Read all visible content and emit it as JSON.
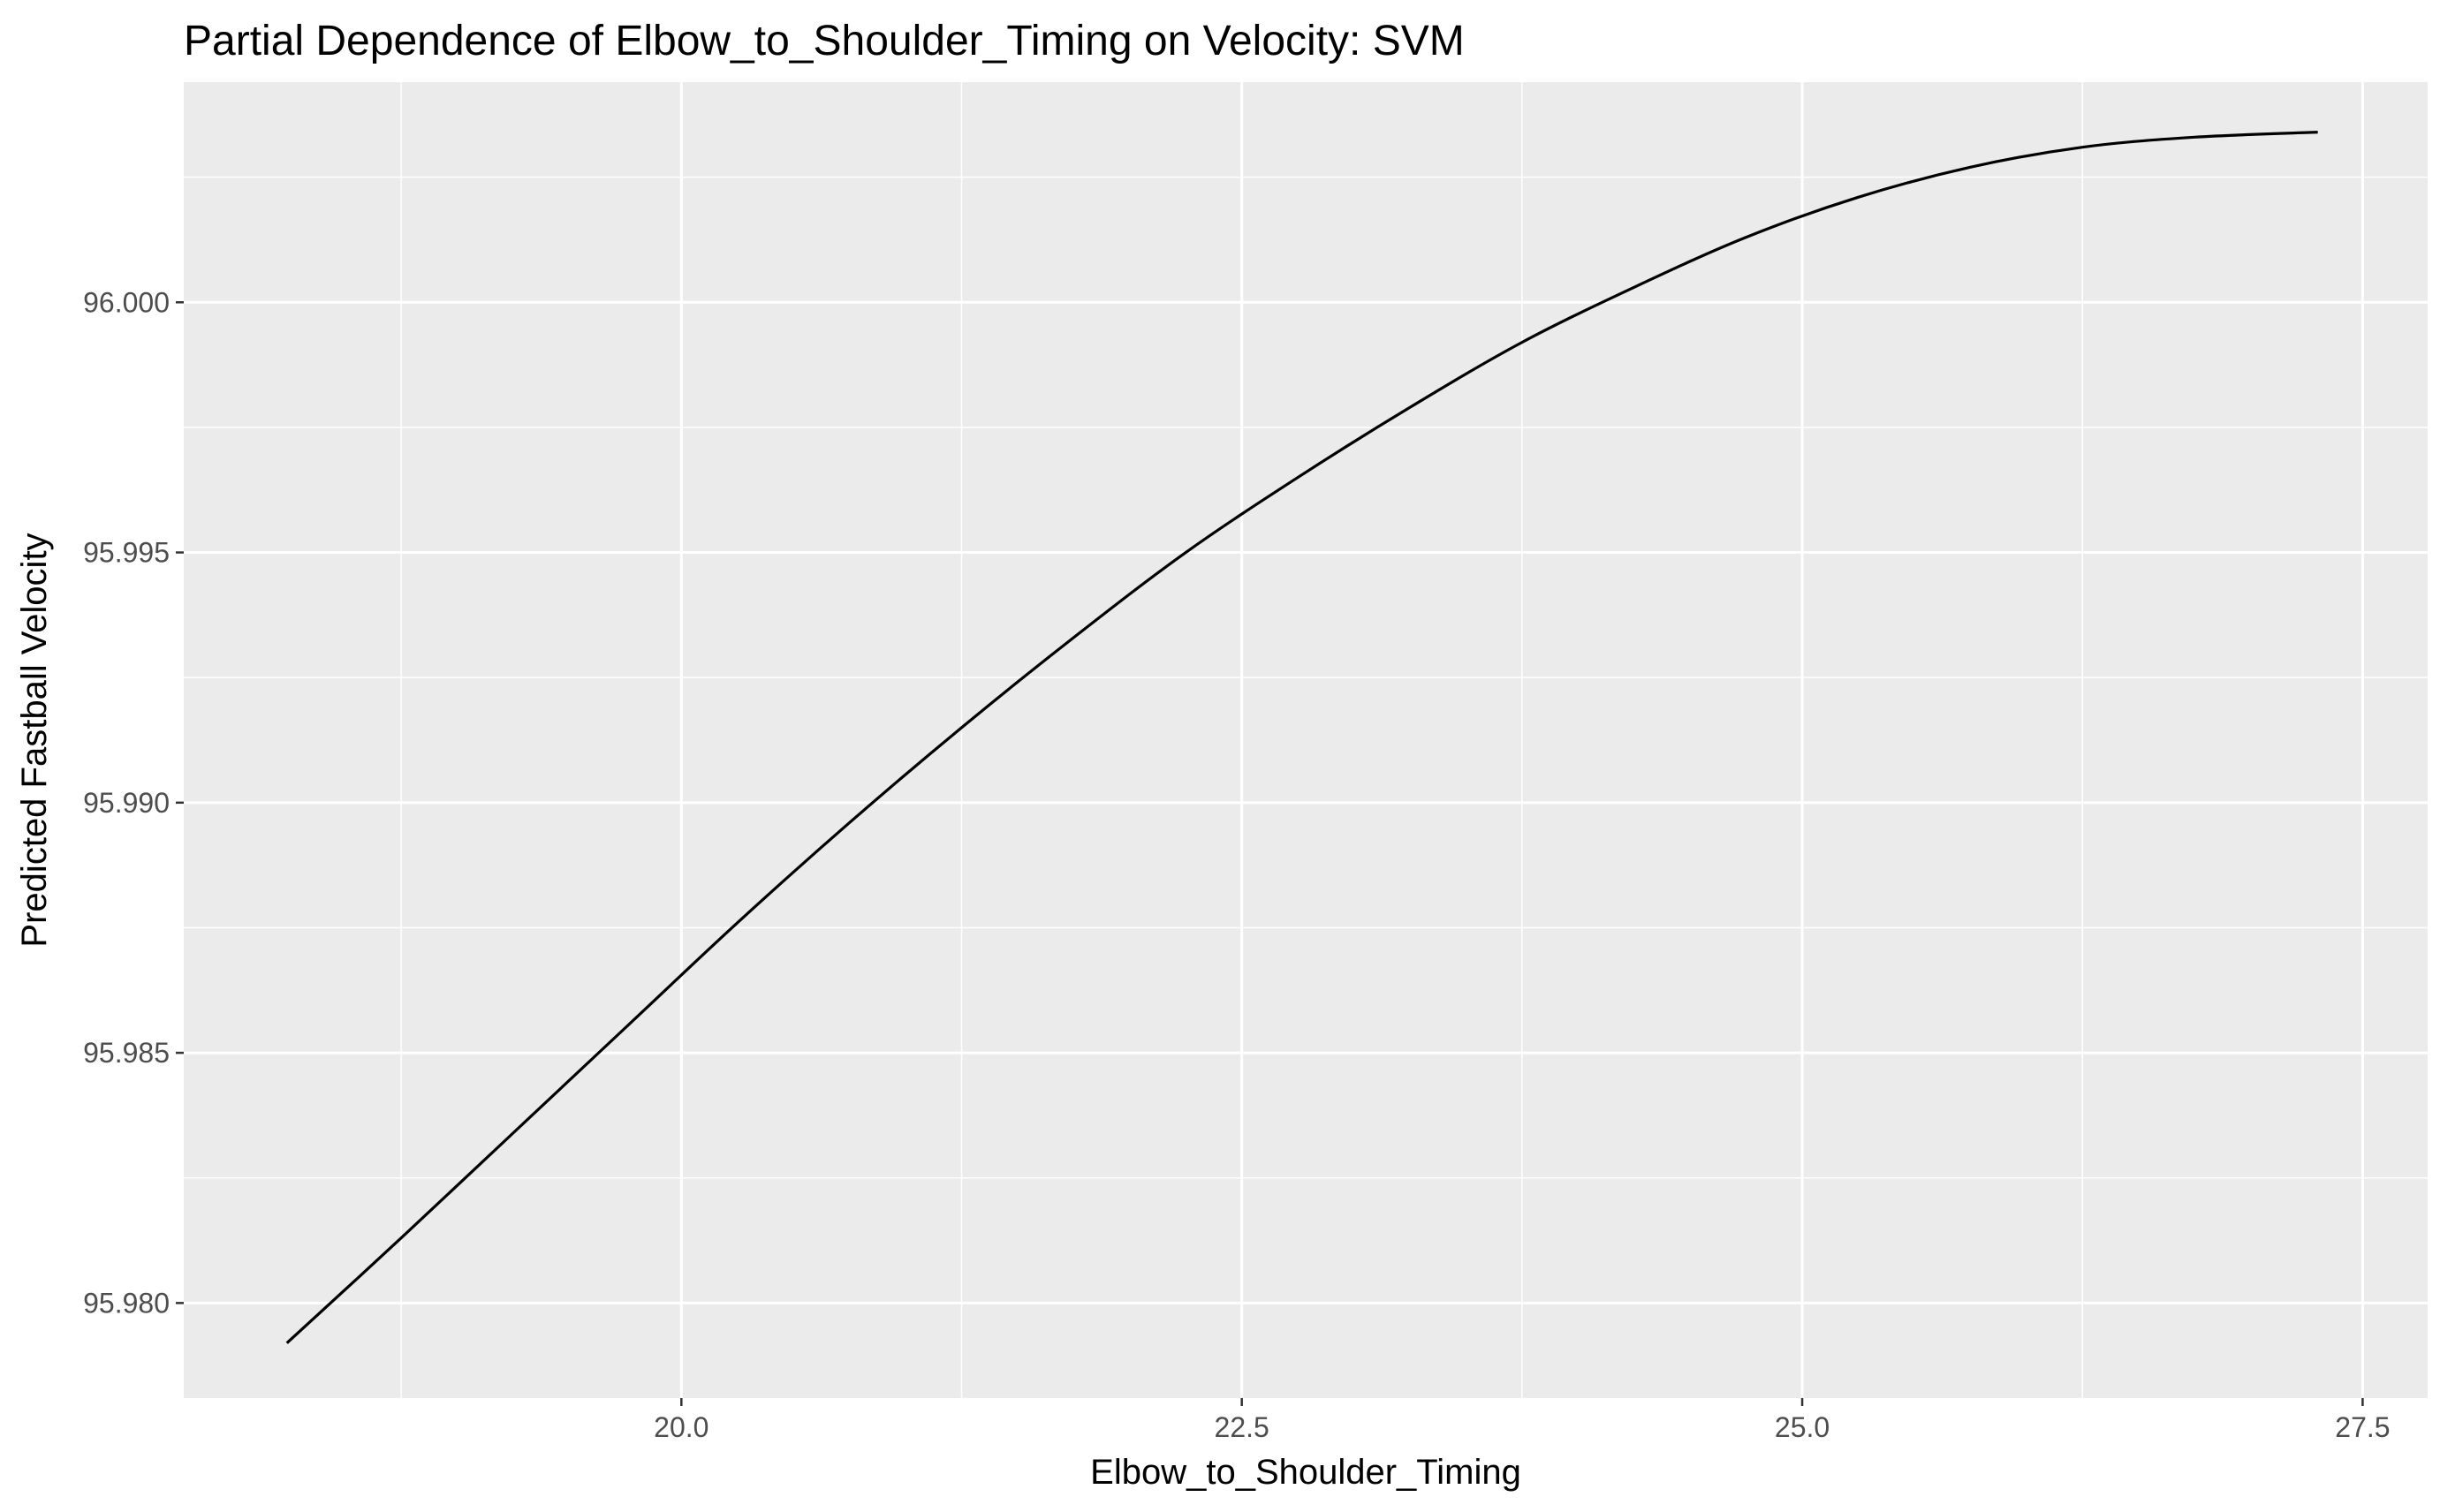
{
  "chart_data": {
    "type": "line",
    "title": "Partial Dependence of Elbow_to_Shoulder_Timing on Velocity: SVM",
    "xlabel": "Elbow_to_Shoulder_Timing",
    "ylabel": "Predicted Fastball Velocity",
    "xlim": [
      17.78,
      27.79
    ],
    "ylim": [
      95.9781,
      96.0044
    ],
    "x_ticks": [
      20.0,
      22.5,
      25.0,
      27.5
    ],
    "x_tick_labels": [
      "20.0",
      "22.5",
      "25.0",
      "27.5"
    ],
    "y_ticks": [
      95.98,
      95.985,
      95.99,
      95.995,
      96.0
    ],
    "y_tick_labels": [
      "95.980",
      "95.985",
      "95.990",
      "95.995",
      "96.000"
    ],
    "grid": true,
    "panel_background": "#ebebeb",
    "line_color": "#000000",
    "series": [
      {
        "x": [
          18.24,
          18.75,
          19.25,
          19.75,
          20.25,
          20.75,
          21.25,
          21.75,
          22.25,
          22.75,
          23.25,
          23.75,
          24.25,
          24.75,
          25.25,
          25.75,
          26.25,
          26.75,
          27.3
        ],
        "y": [
          95.9792,
          95.9813,
          95.9834,
          95.9855,
          95.9876,
          95.9896,
          95.9915,
          95.9933,
          95.995,
          95.9965,
          95.9979,
          95.9992,
          96.0003,
          96.0013,
          96.0021,
          96.0027,
          96.0031,
          96.0033,
          96.0034
        ]
      }
    ]
  }
}
